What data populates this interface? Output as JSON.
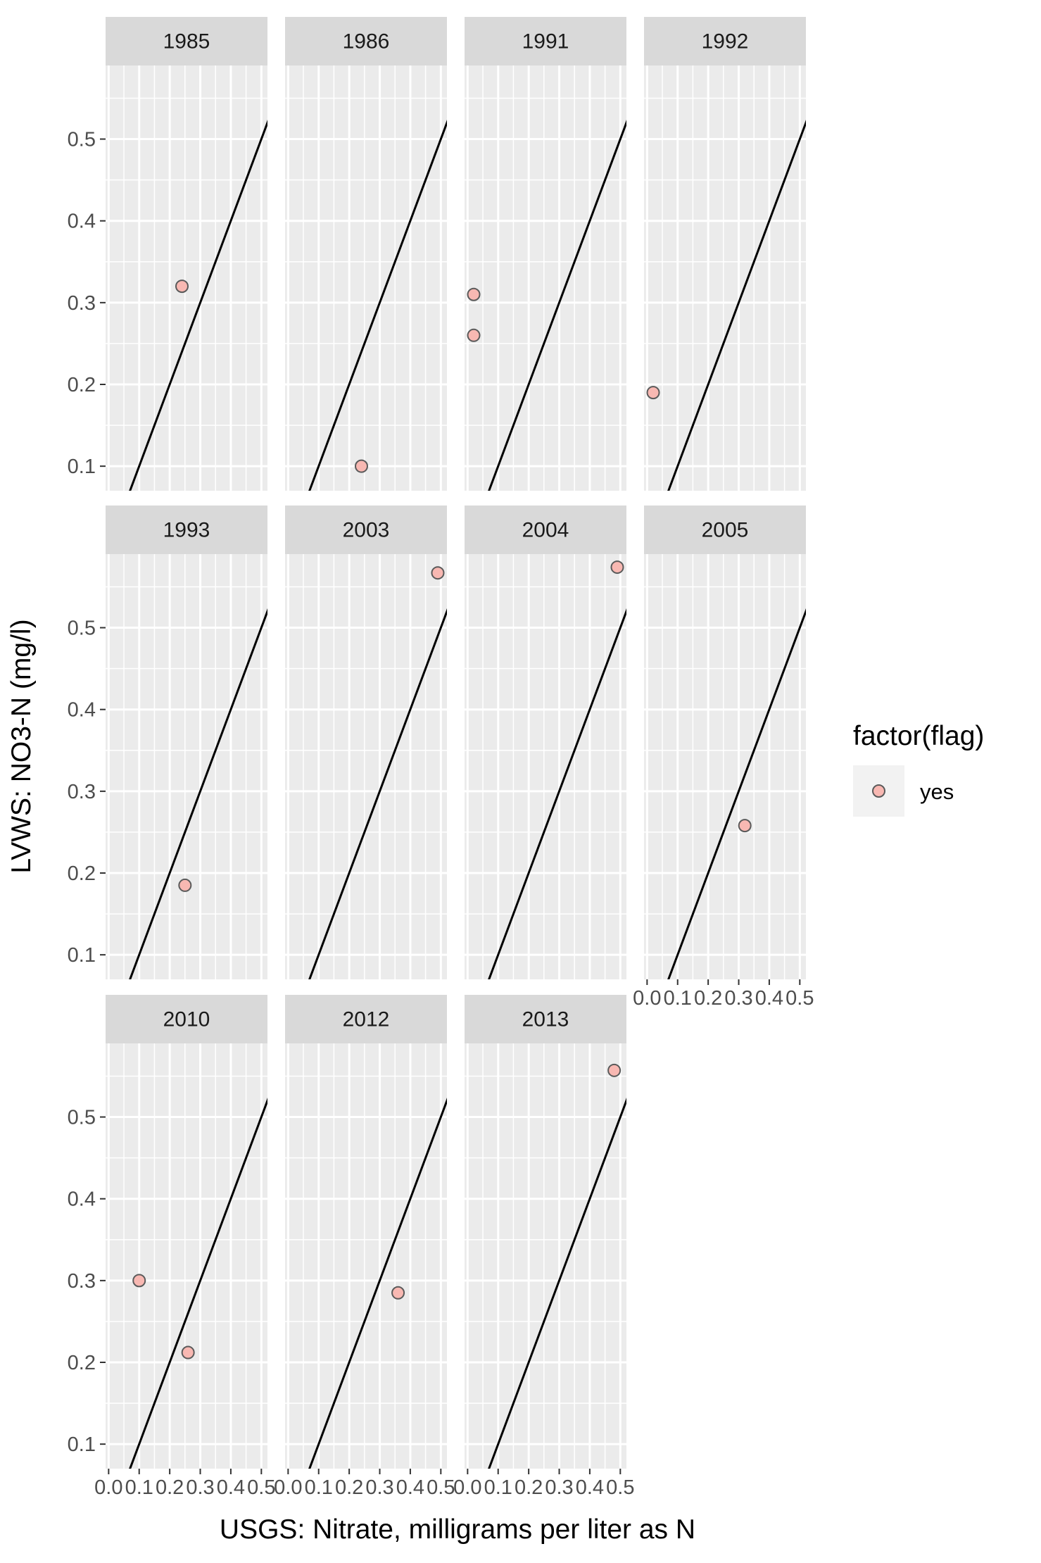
{
  "chart_data": {
    "type": "scatter",
    "facet_by": "year",
    "xlabel": "USGS: Nitrate, milligrams per liter as N",
    "ylabel": "LVWS: NO3-N (mg/l)",
    "xlim": [
      -0.01,
      0.52
    ],
    "ylim": [
      0.07,
      0.59
    ],
    "x_ticks": [
      0.0,
      0.1,
      0.2,
      0.3,
      0.4,
      0.5
    ],
    "x_tick_labels": [
      "0.0",
      "0.1",
      "0.2",
      "0.3",
      "0.4",
      "0.5"
    ],
    "y_ticks": [
      0.1,
      0.2,
      0.3,
      0.4,
      0.5
    ],
    "y_tick_labels": [
      "0.1",
      "0.2",
      "0.3",
      "0.4",
      "0.5"
    ],
    "reference_line": {
      "type": "abline",
      "slope": 1,
      "intercept": 0
    },
    "legend": {
      "title": "factor(flag)",
      "entries": [
        "yes"
      ],
      "position": "right"
    },
    "point_fill": "#F8B8B2",
    "point_stroke": "#5a5a5a",
    "panel_background": "#EBEBEB",
    "strip_background": "#D9D9D9",
    "panels": [
      {
        "label": "1985",
        "points": [
          {
            "x": 0.24,
            "y": 0.32
          }
        ]
      },
      {
        "label": "1986",
        "points": [
          {
            "x": 0.24,
            "y": 0.1
          }
        ]
      },
      {
        "label": "1991",
        "points": [
          {
            "x": 0.02,
            "y": 0.31
          },
          {
            "x": 0.02,
            "y": 0.26
          }
        ]
      },
      {
        "label": "1992",
        "points": [
          {
            "x": 0.02,
            "y": 0.19
          }
        ]
      },
      {
        "label": "1993",
        "points": [
          {
            "x": 0.25,
            "y": 0.185
          }
        ]
      },
      {
        "label": "2003",
        "points": [
          {
            "x": 0.49,
            "y": 0.567
          }
        ]
      },
      {
        "label": "2004",
        "points": [
          {
            "x": 0.49,
            "y": 0.574
          }
        ]
      },
      {
        "label": "2005",
        "points": [
          {
            "x": 0.32,
            "y": 0.258
          }
        ]
      },
      {
        "label": "2010",
        "points": [
          {
            "x": 0.1,
            "y": 0.3
          },
          {
            "x": 0.26,
            "y": 0.212
          }
        ]
      },
      {
        "label": "2012",
        "points": [
          {
            "x": 0.36,
            "y": 0.285
          }
        ]
      },
      {
        "label": "2013",
        "points": [
          {
            "x": 0.48,
            "y": 0.557
          }
        ]
      }
    ]
  }
}
